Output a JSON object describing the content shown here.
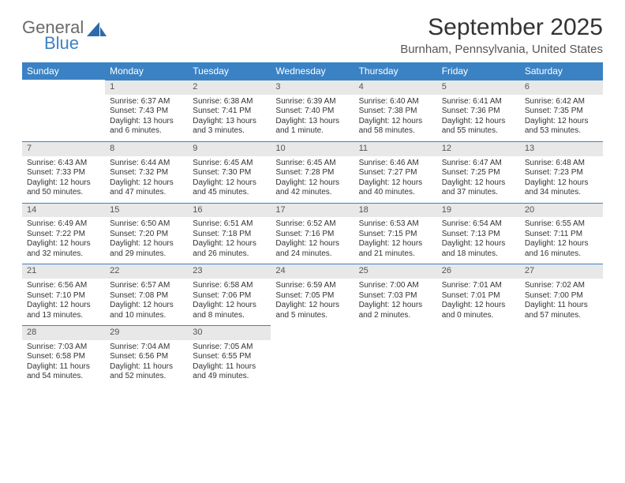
{
  "brand": {
    "line1": "General",
    "line2": "Blue",
    "color_gray": "#6a6a6a",
    "color_blue": "#3b82c4"
  },
  "title": "September 2025",
  "location": "Burnham, Pennsylvania, United States",
  "header_bg": "#3b82c4",
  "daynum_bg": "#e8e8e8",
  "weekdays": [
    "Sunday",
    "Monday",
    "Tuesday",
    "Wednesday",
    "Thursday",
    "Friday",
    "Saturday"
  ],
  "leading_blanks": 1,
  "days": [
    {
      "n": "1",
      "sunrise": "Sunrise: 6:37 AM",
      "sunset": "Sunset: 7:43 PM",
      "daylight": "Daylight: 13 hours and 6 minutes."
    },
    {
      "n": "2",
      "sunrise": "Sunrise: 6:38 AM",
      "sunset": "Sunset: 7:41 PM",
      "daylight": "Daylight: 13 hours and 3 minutes."
    },
    {
      "n": "3",
      "sunrise": "Sunrise: 6:39 AM",
      "sunset": "Sunset: 7:40 PM",
      "daylight": "Daylight: 13 hours and 1 minute."
    },
    {
      "n": "4",
      "sunrise": "Sunrise: 6:40 AM",
      "sunset": "Sunset: 7:38 PM",
      "daylight": "Daylight: 12 hours and 58 minutes."
    },
    {
      "n": "5",
      "sunrise": "Sunrise: 6:41 AM",
      "sunset": "Sunset: 7:36 PM",
      "daylight": "Daylight: 12 hours and 55 minutes."
    },
    {
      "n": "6",
      "sunrise": "Sunrise: 6:42 AM",
      "sunset": "Sunset: 7:35 PM",
      "daylight": "Daylight: 12 hours and 53 minutes."
    },
    {
      "n": "7",
      "sunrise": "Sunrise: 6:43 AM",
      "sunset": "Sunset: 7:33 PM",
      "daylight": "Daylight: 12 hours and 50 minutes."
    },
    {
      "n": "8",
      "sunrise": "Sunrise: 6:44 AM",
      "sunset": "Sunset: 7:32 PM",
      "daylight": "Daylight: 12 hours and 47 minutes."
    },
    {
      "n": "9",
      "sunrise": "Sunrise: 6:45 AM",
      "sunset": "Sunset: 7:30 PM",
      "daylight": "Daylight: 12 hours and 45 minutes."
    },
    {
      "n": "10",
      "sunrise": "Sunrise: 6:45 AM",
      "sunset": "Sunset: 7:28 PM",
      "daylight": "Daylight: 12 hours and 42 minutes."
    },
    {
      "n": "11",
      "sunrise": "Sunrise: 6:46 AM",
      "sunset": "Sunset: 7:27 PM",
      "daylight": "Daylight: 12 hours and 40 minutes."
    },
    {
      "n": "12",
      "sunrise": "Sunrise: 6:47 AM",
      "sunset": "Sunset: 7:25 PM",
      "daylight": "Daylight: 12 hours and 37 minutes."
    },
    {
      "n": "13",
      "sunrise": "Sunrise: 6:48 AM",
      "sunset": "Sunset: 7:23 PM",
      "daylight": "Daylight: 12 hours and 34 minutes."
    },
    {
      "n": "14",
      "sunrise": "Sunrise: 6:49 AM",
      "sunset": "Sunset: 7:22 PM",
      "daylight": "Daylight: 12 hours and 32 minutes."
    },
    {
      "n": "15",
      "sunrise": "Sunrise: 6:50 AM",
      "sunset": "Sunset: 7:20 PM",
      "daylight": "Daylight: 12 hours and 29 minutes."
    },
    {
      "n": "16",
      "sunrise": "Sunrise: 6:51 AM",
      "sunset": "Sunset: 7:18 PM",
      "daylight": "Daylight: 12 hours and 26 minutes."
    },
    {
      "n": "17",
      "sunrise": "Sunrise: 6:52 AM",
      "sunset": "Sunset: 7:16 PM",
      "daylight": "Daylight: 12 hours and 24 minutes."
    },
    {
      "n": "18",
      "sunrise": "Sunrise: 6:53 AM",
      "sunset": "Sunset: 7:15 PM",
      "daylight": "Daylight: 12 hours and 21 minutes."
    },
    {
      "n": "19",
      "sunrise": "Sunrise: 6:54 AM",
      "sunset": "Sunset: 7:13 PM",
      "daylight": "Daylight: 12 hours and 18 minutes."
    },
    {
      "n": "20",
      "sunrise": "Sunrise: 6:55 AM",
      "sunset": "Sunset: 7:11 PM",
      "daylight": "Daylight: 12 hours and 16 minutes."
    },
    {
      "n": "21",
      "sunrise": "Sunrise: 6:56 AM",
      "sunset": "Sunset: 7:10 PM",
      "daylight": "Daylight: 12 hours and 13 minutes."
    },
    {
      "n": "22",
      "sunrise": "Sunrise: 6:57 AM",
      "sunset": "Sunset: 7:08 PM",
      "daylight": "Daylight: 12 hours and 10 minutes."
    },
    {
      "n": "23",
      "sunrise": "Sunrise: 6:58 AM",
      "sunset": "Sunset: 7:06 PM",
      "daylight": "Daylight: 12 hours and 8 minutes."
    },
    {
      "n": "24",
      "sunrise": "Sunrise: 6:59 AM",
      "sunset": "Sunset: 7:05 PM",
      "daylight": "Daylight: 12 hours and 5 minutes."
    },
    {
      "n": "25",
      "sunrise": "Sunrise: 7:00 AM",
      "sunset": "Sunset: 7:03 PM",
      "daylight": "Daylight: 12 hours and 2 minutes."
    },
    {
      "n": "26",
      "sunrise": "Sunrise: 7:01 AM",
      "sunset": "Sunset: 7:01 PM",
      "daylight": "Daylight: 12 hours and 0 minutes."
    },
    {
      "n": "27",
      "sunrise": "Sunrise: 7:02 AM",
      "sunset": "Sunset: 7:00 PM",
      "daylight": "Daylight: 11 hours and 57 minutes."
    },
    {
      "n": "28",
      "sunrise": "Sunrise: 7:03 AM",
      "sunset": "Sunset: 6:58 PM",
      "daylight": "Daylight: 11 hours and 54 minutes."
    },
    {
      "n": "29",
      "sunrise": "Sunrise: 7:04 AM",
      "sunset": "Sunset: 6:56 PM",
      "daylight": "Daylight: 11 hours and 52 minutes."
    },
    {
      "n": "30",
      "sunrise": "Sunrise: 7:05 AM",
      "sunset": "Sunset: 6:55 PM",
      "daylight": "Daylight: 11 hours and 49 minutes."
    }
  ]
}
